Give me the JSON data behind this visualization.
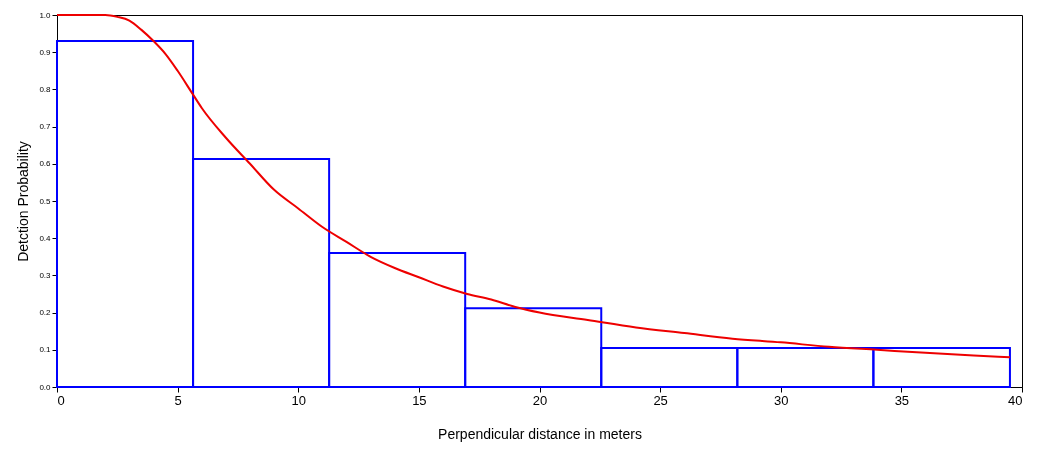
{
  "chart_data": {
    "type": "histogram",
    "xlabel": "Perpendicular distance in meters",
    "ylabel": "Detction Probability",
    "xlim": [
      0,
      40
    ],
    "xticks": [
      0,
      5,
      10,
      15,
      20,
      25,
      30,
      35,
      40
    ],
    "ylim": [
      0,
      1
    ],
    "yticks": [
      {
        "value": 0,
        "label": "0.0"
      },
      {
        "value": 0.1,
        "label": "0.1"
      },
      {
        "value": 0.2,
        "label": "0.2"
      },
      {
        "value": 0.3,
        "label": "0.3"
      },
      {
        "value": 0.4,
        "label": "0.4"
      },
      {
        "value": 0.5,
        "label": "0.5"
      },
      {
        "value": 0.6,
        "label": "0.6"
      },
      {
        "value": 0.7,
        "label": "0.7"
      },
      {
        "value": 0.8,
        "label": "0.8"
      },
      {
        "value": 0.9,
        "label": "0.9"
      },
      {
        "value": 1,
        "label": "1.0"
      }
    ],
    "grid": false,
    "legend": false,
    "series": [
      {
        "type": "histogram",
        "color": "#0000ff",
        "bins": [
          0,
          5.64,
          11.28,
          16.92,
          22.56,
          28.2,
          33.84,
          39.5
        ],
        "values": [
          0.93,
          0.613,
          0.36,
          0.212,
          0.105,
          0.105,
          0.105
        ]
      },
      {
        "type": "line",
        "color": "#ee0000",
        "x": [
          0,
          1,
          2,
          2.5,
          3,
          3.5,
          4,
          4.5,
          5,
          5.6,
          6,
          7,
          8,
          9,
          10,
          11,
          12,
          13,
          14,
          15,
          16,
          17,
          18,
          19,
          20,
          22,
          24,
          26,
          28,
          30,
          32,
          34,
          36,
          38,
          39.5
        ],
        "values": [
          1.0,
          1.0,
          1.0,
          0.995,
          0.985,
          0.96,
          0.93,
          0.895,
          0.85,
          0.79,
          0.75,
          0.67,
          0.6,
          0.53,
          0.48,
          0.43,
          0.39,
          0.35,
          0.32,
          0.295,
          0.27,
          0.25,
          0.235,
          0.215,
          0.2,
          0.18,
          0.16,
          0.145,
          0.13,
          0.12,
          0.108,
          0.1,
          0.092,
          0.085,
          0.08
        ]
      }
    ]
  }
}
